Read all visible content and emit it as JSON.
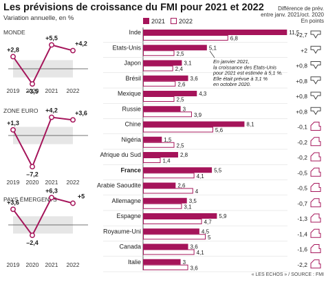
{
  "header": {
    "title": "Les prévisions de croissance du FMI pour 2021 et 2022",
    "subtitle": "Variation annuelle, en %",
    "diff_note_line1": "Différence de prév.",
    "diff_note_line2": "entre janv. 2021/oct. 2020",
    "diff_note_line3": "En points"
  },
  "footer": {
    "source": "« LES ECHOS » / SOURCE : FMI"
  },
  "colors": {
    "bar_2021": "#a5145a",
    "bar_2022_fill": "#ffffff",
    "bar_2022_stroke": "#a5145a",
    "line": "#a5145a",
    "area": "#e6e6e6"
  },
  "annotation": {
    "lines": [
      "En janvier 2021,",
      "la croissance des Etats-Unis",
      "pour 2021 est estimée à 5,1 %.",
      "Elle était prévue à 3,1 %",
      "en octobre 2020."
    ]
  },
  "chart_data": [
    {
      "type": "bar",
      "legend": [
        "2021",
        "2022"
      ],
      "categories": [
        "Inde",
        "Etats-Unis",
        "Japon",
        "Brésil",
        "Mexique",
        "Russie",
        "Chine",
        "Nigéria",
        "Afrique du Sud",
        "France",
        "Arabie Saoudite",
        "Allemagne",
        "Espagne",
        "Royaume-Uni",
        "Canada",
        "Italie"
      ],
      "series": [
        {
          "name": "2021",
          "values": [
            11.5,
            5.1,
            3.1,
            3.6,
            4.3,
            3,
            8.1,
            1.5,
            2.8,
            5.5,
            2.6,
            3.5,
            5.9,
            4.5,
            3.6,
            3
          ],
          "labels": [
            "11,5",
            "5,1",
            "3,1",
            "3,6",
            "4,3",
            "3",
            "8,1",
            "1,5",
            "2,8",
            "5,5",
            "2,6",
            "3,5",
            "5,9",
            "4,5",
            "3,6",
            "3"
          ]
        },
        {
          "name": "2022",
          "values": [
            6.8,
            2.5,
            2.4,
            2.6,
            2.5,
            3.9,
            5.6,
            2.5,
            1.4,
            4.1,
            4,
            3.1,
            4.7,
            5,
            4.1,
            3.6
          ],
          "labels": [
            "6,8",
            "2,5",
            "2,4",
            "2,6",
            "2,5",
            "3,9",
            "5,6",
            "2,5",
            "1,4",
            "4,1",
            "4",
            "3,1",
            "4,7",
            "5",
            "4,1",
            "3,6"
          ]
        }
      ],
      "differences": [
        2.7,
        2,
        0.8,
        0.8,
        0.8,
        0.8,
        -0.1,
        -0.2,
        -0.2,
        -0.5,
        -0.5,
        -0.7,
        -1.3,
        -1.4,
        -1.6,
        -2.2
      ],
      "difference_labels": [
        "+2,7",
        "+2",
        "+0,8",
        "+0,8",
        "+0,8",
        "+0,8",
        "-0,1",
        "-0,2",
        "-0,2",
        "-0,5",
        "-0,5",
        "-0,7",
        "-1,3",
        "-1,4",
        "-1,6",
        "-2,2"
      ],
      "highlight": "France"
    },
    {
      "type": "line",
      "title": "MONDE",
      "x": [
        "2019",
        "2020",
        "2021",
        "2022"
      ],
      "values": [
        2.8,
        -3.5,
        5.5,
        4.2
      ],
      "labels": [
        "+2,8",
        "–3,5",
        "+5,5",
        "+4,2"
      ]
    },
    {
      "type": "line",
      "title": "ZONE EURO",
      "x": [
        "2019",
        "2020",
        "2021",
        "2022"
      ],
      "values": [
        1.3,
        -7.2,
        4.2,
        3.6
      ],
      "labels": [
        "+1,3",
        "–7,2",
        "+4,2",
        "+3,6"
      ]
    },
    {
      "type": "line",
      "title": "PAYS ÉMERGENTS",
      "x": [
        "2019",
        "2020",
        "2021",
        "2022"
      ],
      "values": [
        3.6,
        -2.4,
        6.3,
        5
      ],
      "labels": [
        "+3,6",
        "–2,4",
        "+6,3",
        "+5"
      ]
    }
  ]
}
